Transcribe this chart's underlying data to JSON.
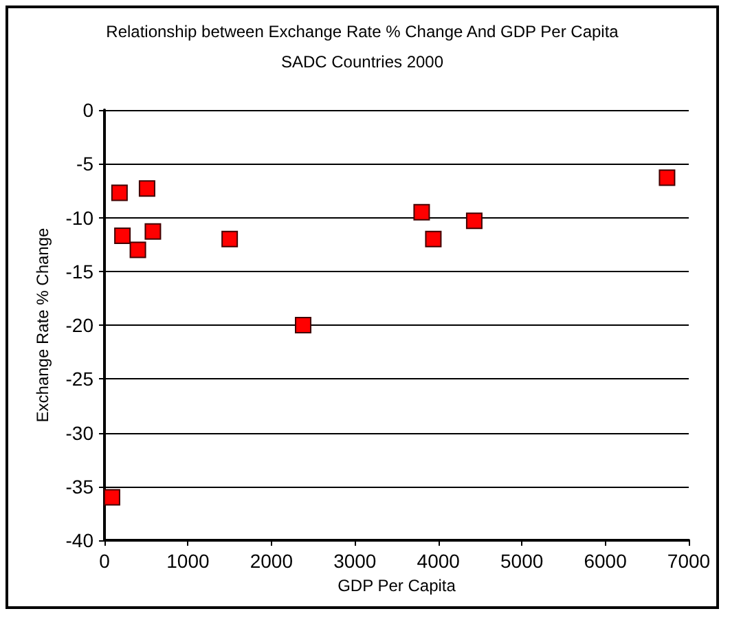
{
  "chart_data": {
    "type": "scatter",
    "title": "Relationship between Exchange Rate % Change And GDP Per Capita",
    "subtitle": "SADC Countries 2000",
    "xlabel": "GDP Per Capita",
    "ylabel": "Exchange Rate % Change",
    "x": [
      90,
      180,
      510,
      215,
      400,
      580,
      1500,
      2380,
      3800,
      3940,
      4430,
      6740
    ],
    "values": [
      -36,
      -7.7,
      -7.3,
      -11.7,
      -13,
      -11.3,
      -12,
      -20,
      -9.5,
      -12,
      -10.3,
      -6.3
    ],
    "color": "#ff0000",
    "marker": "square",
    "xlim": [
      0,
      7000
    ],
    "xticks": [
      0,
      1000,
      2000,
      3000,
      4000,
      5000,
      6000,
      7000
    ],
    "ylim": [
      -40,
      0
    ],
    "yticks": [
      -40,
      -35,
      -30,
      -25,
      -20,
      -15,
      -10,
      -5,
      0
    ],
    "grid": "y"
  }
}
